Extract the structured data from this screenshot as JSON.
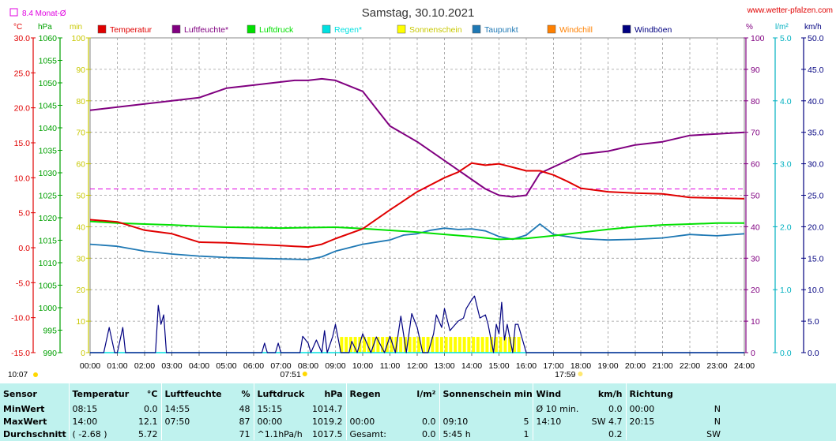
{
  "header": {
    "title": "Samstag, 30.10.2021",
    "site": "www.wetter-pfalzen.com",
    "avg_label": "8.4 Monat-Ø",
    "time_marker": "10:07"
  },
  "axes": {
    "units_left": [
      "°C",
      "hPa",
      "min"
    ],
    "units_right": [
      "%",
      "l/m²",
      "km/h"
    ],
    "temp_ticks": [
      "30.0",
      "25.0",
      "20.0",
      "15.0",
      "10.0",
      "5.0",
      "0.0",
      "-5.0",
      "-10.0",
      "-15.0"
    ],
    "hpa_ticks": [
      "1060",
      "1055",
      "1050",
      "1045",
      "1040",
      "1035",
      "1030",
      "1025",
      "1020",
      "1015",
      "1010",
      "1005",
      "1000",
      "995",
      "990"
    ],
    "min_ticks": [
      "100",
      "90",
      "80",
      "70",
      "60",
      "50",
      "40",
      "30",
      "20",
      "10",
      "0"
    ],
    "pct_ticks": [
      "100",
      "90",
      "80",
      "70",
      "60",
      "50",
      "40",
      "30",
      "20",
      "10",
      "0"
    ],
    "rain_ticks": [
      "5.0",
      "4.0",
      "3.0",
      "2.0",
      "1.0",
      "0.0"
    ],
    "wind_ticks": [
      "50.0",
      "45.0",
      "40.0",
      "35.0",
      "30.0",
      "25.0",
      "20.0",
      "15.0",
      "10.0",
      "5.0",
      "0.0"
    ],
    "time_ticks": [
      "00:00",
      "01:00",
      "02:00",
      "03:00",
      "04:00",
      "05:00",
      "06:00",
      "07:00",
      "08:00",
      "09:00",
      "10:00",
      "11:00",
      "12:00",
      "13:00",
      "14:00",
      "15:00",
      "16:00",
      "17:00",
      "18:00",
      "19:00",
      "20:00",
      "21:00",
      "22:00",
      "23:00",
      "24:00"
    ],
    "sunrise": "07:51",
    "sunset": "17:59"
  },
  "legend": [
    {
      "label": "Temperatur",
      "color": "#e00000"
    },
    {
      "label": "Luftfeuchte*",
      "color": "#800080"
    },
    {
      "label": "Luftdruck",
      "color": "#00e000"
    },
    {
      "label": "Regen*",
      "color": "#00e0e0"
    },
    {
      "label": "Sonnenschein",
      "color": "#ffff00"
    },
    {
      "label": "Taupunkt",
      "color": "#1e78b4"
    },
    {
      "label": "Windchill",
      "color": "#ff8000"
    },
    {
      "label": "Windböen",
      "color": "#000080"
    }
  ],
  "chart_data": {
    "type": "line",
    "title": "Samstag, 30.10.2021",
    "x_range": [
      "00:00",
      "24:00"
    ],
    "ylim_temp": [
      -15,
      30
    ],
    "ylim_pressure": [
      990,
      1060
    ],
    "ylim_humidity": [
      0,
      100
    ],
    "ylim_rain": [
      0,
      5
    ],
    "ylim_wind": [
      0,
      50
    ],
    "grid": true,
    "month_avg_temp": 8.4,
    "series": [
      {
        "name": "Temperatur",
        "unit": "°C",
        "color": "#e00000",
        "axis": "temp",
        "x": [
          0,
          1,
          2,
          3,
          4,
          5,
          6,
          7,
          7.5,
          8,
          8.5,
          9,
          10,
          11,
          12,
          13,
          13.5,
          14,
          14.5,
          15,
          15.5,
          16,
          16.5,
          17,
          17.5,
          18,
          19,
          20,
          21,
          22,
          23,
          24
        ],
        "y": [
          4,
          3.7,
          2.5,
          2,
          0.8,
          0.7,
          0.5,
          0.3,
          0.2,
          0.1,
          0.5,
          1.3,
          2.7,
          5.4,
          8,
          10,
          10.8,
          12.1,
          11.8,
          12,
          11.5,
          11,
          11,
          10.4,
          9.5,
          8.5,
          8,
          7.8,
          7.7,
          7.2,
          7.1,
          7
        ]
      },
      {
        "name": "Luftfeuchte*",
        "unit": "%",
        "color": "#800080",
        "axis": "pct",
        "x": [
          0,
          1,
          2,
          3,
          4,
          5,
          6,
          7,
          7.5,
          8,
          8.5,
          9,
          10,
          11,
          12,
          13,
          13.5,
          14,
          14.5,
          15,
          15.5,
          16,
          16.5,
          17,
          17.5,
          18,
          19,
          20,
          21,
          22,
          23,
          24
        ],
        "y": [
          77,
          78,
          79,
          80,
          81,
          84,
          85,
          86,
          86.5,
          86.5,
          87,
          86.5,
          83,
          72,
          67,
          61,
          58,
          55,
          52,
          50,
          49.5,
          50,
          57,
          59,
          61,
          63,
          64,
          66,
          67,
          69,
          69.5,
          70
        ]
      },
      {
        "name": "Luftdruck",
        "unit": "hPa",
        "color": "#00e000",
        "axis": "hpa",
        "x": [
          0,
          1,
          2,
          3,
          4,
          5,
          6,
          7,
          8,
          9,
          10,
          11,
          12,
          13,
          14,
          15,
          16,
          17,
          18,
          19,
          20,
          21,
          22,
          23,
          24
        ],
        "y": [
          1019.2,
          1018.8,
          1018.6,
          1018.4,
          1018.1,
          1017.9,
          1017.8,
          1017.7,
          1017.8,
          1017.9,
          1017.6,
          1017.2,
          1016.8,
          1016.3,
          1015.8,
          1015.2,
          1015.4,
          1016,
          1016.7,
          1017.4,
          1018,
          1018.4,
          1018.6,
          1018.8,
          1018.8
        ]
      },
      {
        "name": "Taupunkt",
        "unit": "°C",
        "color": "#1e78b4",
        "axis": "temp",
        "x": [
          0,
          1,
          2,
          3,
          4,
          5,
          6,
          7,
          8,
          8.5,
          9,
          10,
          11,
          11.5,
          12,
          12.5,
          13,
          13.5,
          14,
          14.5,
          15,
          15.5,
          16,
          16.5,
          17,
          17.5,
          18,
          19,
          20,
          21,
          22,
          23,
          24
        ],
        "y": [
          0.5,
          0.2,
          -0.5,
          -0.9,
          -1.2,
          -1.4,
          -1.5,
          -1.6,
          -1.7,
          -1.3,
          -0.5,
          0.5,
          1.1,
          1.8,
          2,
          2.5,
          2.8,
          2.6,
          2.7,
          2.4,
          1.6,
          1.2,
          1.8,
          3.4,
          1.9,
          1.6,
          1.3,
          1.1,
          1.2,
          1.4,
          1.9,
          1.7,
          2
        ]
      },
      {
        "name": "Windböen",
        "unit": "km/h",
        "color": "#000080",
        "axis": "wind",
        "x": [
          0,
          0.5,
          0.7,
          0.9,
          1,
          1.2,
          1.3,
          1.5,
          2,
          2.2,
          2.4,
          2.5,
          2.6,
          2.7,
          2.8,
          3,
          3.5,
          6,
          6.3,
          6.4,
          6.5,
          6.8,
          6.9,
          7,
          7.7,
          7.8,
          8,
          8.1,
          8.3,
          8.5,
          8.6,
          8.7,
          8.9,
          9,
          9.2,
          9.5,
          9.6,
          9.8,
          10,
          10.3,
          10.5,
          10.8,
          11,
          11.2,
          11.4,
          11.6,
          11.8,
          12,
          12.2,
          12.4,
          12.6,
          12.7,
          12.9,
          13,
          13.2,
          13.4,
          13.5,
          13.7,
          13.8,
          14,
          14.1,
          14.3,
          14.5,
          14.6,
          14.8,
          14.9,
          15,
          15.1,
          15.2,
          15.3,
          15.5,
          15.6,
          15.7,
          16,
          24
        ],
        "y": [
          0,
          0,
          4,
          0,
          0,
          4,
          0,
          0,
          0,
          0,
          0,
          7.5,
          4.5,
          6,
          0,
          0,
          0,
          0,
          0,
          1.5,
          0,
          0,
          1.5,
          0,
          0,
          2.6,
          1.5,
          0,
          2,
          0,
          3.5,
          0,
          2.6,
          4.5,
          0,
          0,
          1.8,
          0,
          3,
          0,
          2.5,
          0,
          2.6,
          0,
          5.8,
          0,
          6.2,
          4,
          0,
          0,
          3,
          6,
          4,
          7,
          3.5,
          4.5,
          5,
          5.5,
          7,
          8.4,
          9,
          5.5,
          6,
          4.5,
          0,
          4.5,
          3,
          8,
          2,
          4.5,
          0,
          4.5,
          4.5,
          0,
          0
        ]
      },
      {
        "name": "Sonnenschein",
        "unit": "min",
        "color": "#ffff00",
        "axis": "min",
        "x": [
          0,
          9.17,
          15.75,
          24
        ],
        "y": [
          0,
          5,
          5,
          0
        ]
      },
      {
        "name": "Regen*",
        "unit": "l/m²",
        "color": "#00e0e0",
        "axis": "rain",
        "x": [
          0,
          24
        ],
        "y": [
          0,
          0
        ]
      }
    ]
  },
  "summary": {
    "headers": [
      {
        "label": "Sensor",
        "unit": ""
      },
      {
        "label": "Temperatur",
        "unit": "°C"
      },
      {
        "label": "Luftfeuchte",
        "unit": "%"
      },
      {
        "label": "Luftdruck",
        "unit": "hPa"
      },
      {
        "label": "Regen",
        "unit": "l/m²"
      },
      {
        "label": "Sonnenschein min",
        "unit": ""
      },
      {
        "label": "Wind",
        "unit": "km/h"
      },
      {
        "label": "Richtung",
        "unit": ""
      }
    ],
    "rows": [
      {
        "label": "MinWert",
        "cells": [
          [
            "08:15",
            "0.0"
          ],
          [
            "14:55",
            "48"
          ],
          [
            "15:15",
            "1014.7"
          ],
          [
            "",
            ""
          ],
          [
            "",
            ""
          ],
          [
            "Ø 10 min.",
            "0.0"
          ],
          [
            "00:00",
            "N"
          ]
        ]
      },
      {
        "label": "MaxWert",
        "cells": [
          [
            "14:00",
            "12.1"
          ],
          [
            "07:50",
            "87"
          ],
          [
            "00:00",
            "1019.2"
          ],
          [
            "00:00",
            "0.0"
          ],
          [
            "09:10",
            "5"
          ],
          [
            "14:10",
            "SW 4.7"
          ],
          [
            "20:15",
            "N"
          ]
        ]
      },
      {
        "label": "Durchschnitt",
        "cells": [
          [
            "( -2.68 )",
            "5.72"
          ],
          [
            "",
            "71"
          ],
          [
            "^1.1hPa/h",
            "1017.5"
          ],
          [
            "Gesamt:",
            "0.0"
          ],
          [
            "5:45 h",
            "1"
          ],
          [
            "",
            "0.2"
          ],
          [
            "",
            "SW"
          ]
        ]
      }
    ]
  }
}
